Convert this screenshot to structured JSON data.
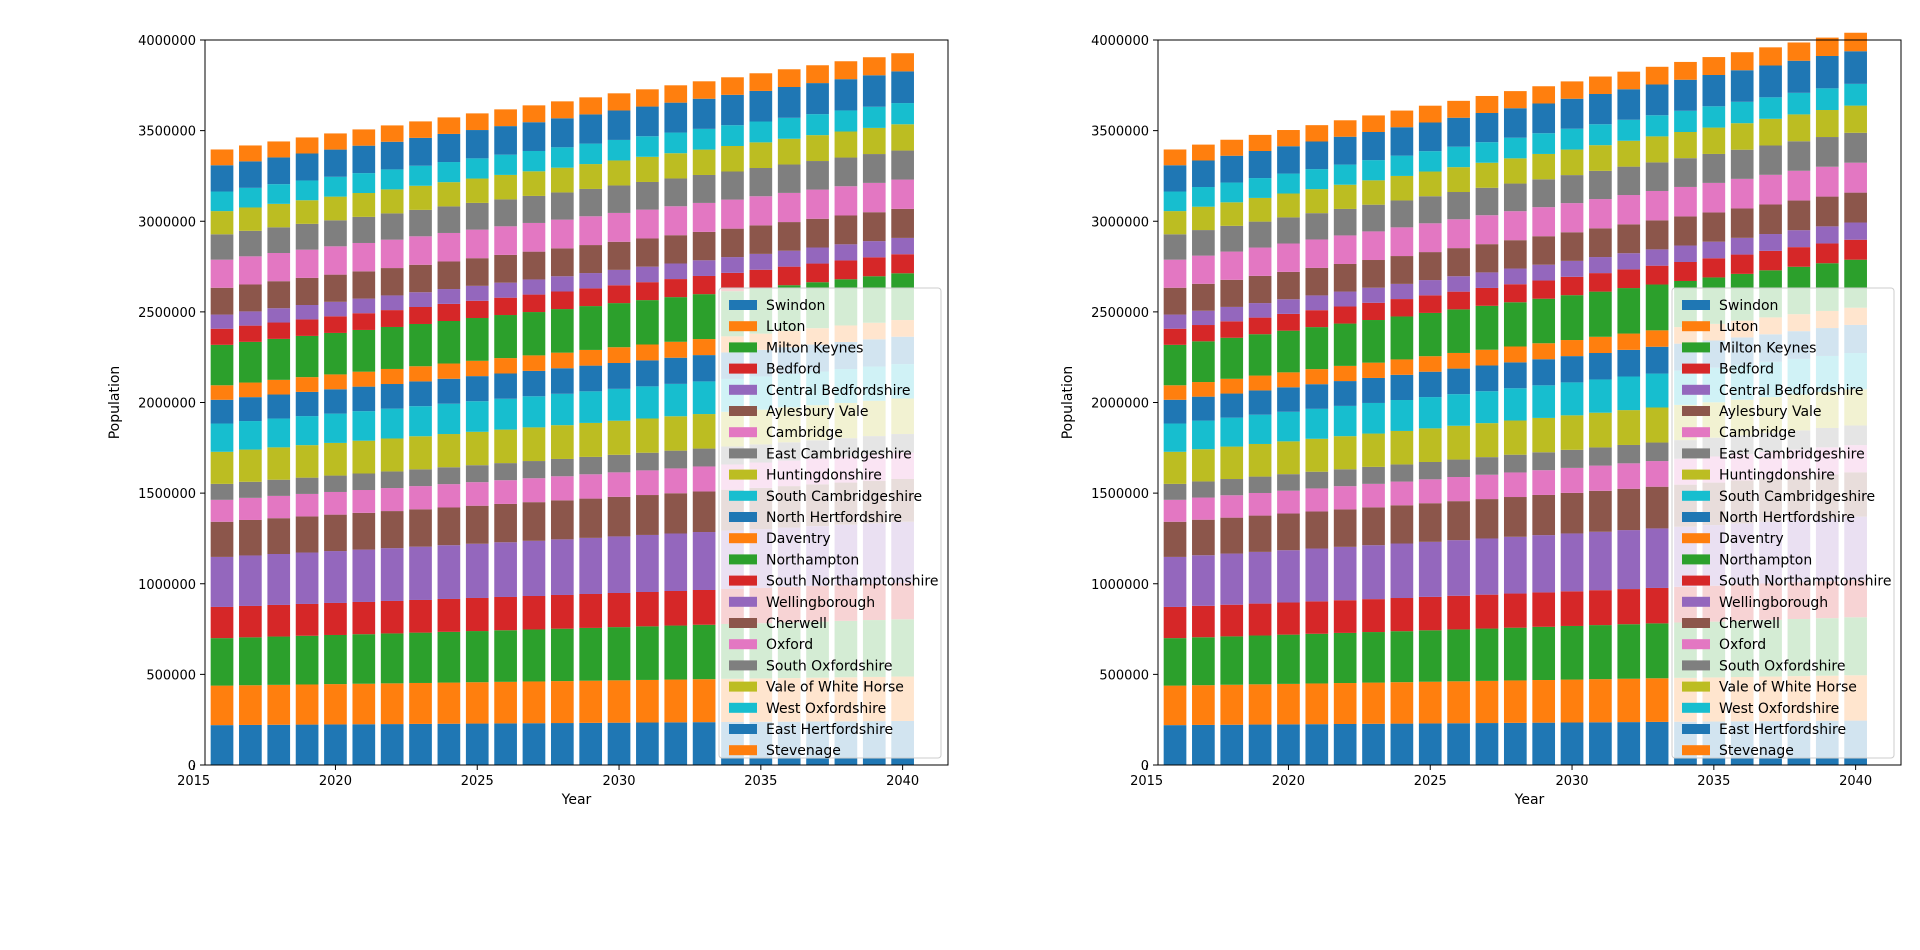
{
  "chart_data": [
    {
      "type": "bar",
      "stacked": true,
      "title": "",
      "xlabel": "Year",
      "ylabel": "Population",
      "xlim": [
        2015.4,
        2041.6
      ],
      "ylim": [
        0,
        4000000
      ],
      "xticks": [
        2015,
        2020,
        2025,
        2030,
        2035,
        2040
      ],
      "yticks": [
        0,
        500000,
        1000000,
        1500000,
        2000000,
        2500000,
        3000000,
        3500000,
        4000000
      ],
      "legend": "lower-right",
      "grid": false,
      "x": [
        2016,
        2017,
        2018,
        2019,
        2020,
        2021,
        2022,
        2023,
        2024,
        2025,
        2026,
        2027,
        2028,
        2029,
        2030,
        2031,
        2032,
        2033,
        2034,
        2035,
        2036,
        2037,
        2038,
        2039,
        2040
      ],
      "series": [
        {
          "name": "Swindon",
          "color": "#1f77b4",
          "start": 220000,
          "end": 243000
        },
        {
          "name": "Luton",
          "color": "#ff7f0e",
          "start": 218000,
          "end": 245000
        },
        {
          "name": "Milton Keynes",
          "color": "#2ca02c",
          "start": 262000,
          "end": 316000
        },
        {
          "name": "Bedford",
          "color": "#d62728",
          "start": 172000,
          "end": 200000
        },
        {
          "name": "Central Bedfordshire",
          "color": "#9467bd",
          "start": 276000,
          "end": 338000
        },
        {
          "name": "Aylesbury Vale",
          "color": "#8c564b",
          "start": 194000,
          "end": 236000
        },
        {
          "name": "Cambridge",
          "color": "#e377c2",
          "start": 121000,
          "end": 145000
        },
        {
          "name": "East Cambridgeshire",
          "color": "#7f7f7f",
          "start": 88000,
          "end": 103000
        },
        {
          "name": "Huntingdonshire",
          "color": "#bcbd22",
          "start": 177000,
          "end": 196000
        },
        {
          "name": "South Cambridgeshire",
          "color": "#17becf",
          "start": 156000,
          "end": 190000
        },
        {
          "name": "North Hertfordshire",
          "color": "#1f77b4",
          "start": 131000,
          "end": 151000
        },
        {
          "name": "Daventry",
          "color": "#ff7f0e",
          "start": 80000,
          "end": 92000
        },
        {
          "name": "Northampton",
          "color": "#2ca02c",
          "start": 223000,
          "end": 258000
        },
        {
          "name": "South Northamptonshire",
          "color": "#d62728",
          "start": 89000,
          "end": 105000
        },
        {
          "name": "Wellingborough",
          "color": "#9467bd",
          "start": 78000,
          "end": 90000
        },
        {
          "name": "Cherwell",
          "color": "#8c564b",
          "start": 148000,
          "end": 160000
        },
        {
          "name": "Oxford",
          "color": "#e377c2",
          "start": 155000,
          "end": 162000
        },
        {
          "name": "South Oxfordshire",
          "color": "#7f7f7f",
          "start": 140000,
          "end": 160000
        },
        {
          "name": "Vale of White Horse",
          "color": "#bcbd22",
          "start": 128000,
          "end": 145000
        },
        {
          "name": "West Oxfordshire",
          "color": "#17becf",
          "start": 108000,
          "end": 117000
        },
        {
          "name": "East Hertfordshire",
          "color": "#1f77b4",
          "start": 145000,
          "end": 175000
        },
        {
          "name": "Stevenage",
          "color": "#ff7f0e",
          "start": 87000,
          "end": 100000
        }
      ]
    },
    {
      "type": "bar",
      "stacked": true,
      "title": "",
      "xlabel": "Year",
      "ylabel": "Population",
      "xlim": [
        2015.4,
        2041.6
      ],
      "ylim": [
        0,
        4000000
      ],
      "xticks": [
        2015,
        2020,
        2025,
        2030,
        2035,
        2040
      ],
      "yticks": [
        0,
        500000,
        1000000,
        1500000,
        2000000,
        2500000,
        3000000,
        3500000,
        4000000
      ],
      "legend": "lower-right",
      "grid": false,
      "x": [
        2016,
        2017,
        2018,
        2019,
        2020,
        2021,
        2022,
        2023,
        2024,
        2025,
        2026,
        2027,
        2028,
        2029,
        2030,
        2031,
        2032,
        2033,
        2034,
        2035,
        2036,
        2037,
        2038,
        2039,
        2040
      ],
      "series": [
        {
          "name": "Swindon",
          "color": "#1f77b4",
          "start": 220000,
          "end": 245000
        },
        {
          "name": "Luton",
          "color": "#ff7f0e",
          "start": 218000,
          "end": 250000
        },
        {
          "name": "Milton Keynes",
          "color": "#2ca02c",
          "start": 262000,
          "end": 320000
        },
        {
          "name": "Bedford",
          "color": "#d62728",
          "start": 172000,
          "end": 205000
        },
        {
          "name": "Central Bedfordshire",
          "color": "#9467bd",
          "start": 276000,
          "end": 350000
        },
        {
          "name": "Aylesbury Vale",
          "color": "#8c564b",
          "start": 194000,
          "end": 245000
        },
        {
          "name": "Cambridge",
          "color": "#e377c2",
          "start": 121000,
          "end": 150000
        },
        {
          "name": "East Cambridgeshire",
          "color": "#7f7f7f",
          "start": 88000,
          "end": 108000
        },
        {
          "name": "Huntingdonshire",
          "color": "#bcbd22",
          "start": 177000,
          "end": 200000
        },
        {
          "name": "South Cambridgeshire",
          "color": "#17becf",
          "start": 156000,
          "end": 200000
        },
        {
          "name": "North Hertfordshire",
          "color": "#1f77b4",
          "start": 131000,
          "end": 155000
        },
        {
          "name": "Daventry",
          "color": "#ff7f0e",
          "start": 80000,
          "end": 95000
        },
        {
          "name": "Northampton",
          "color": "#2ca02c",
          "start": 223000,
          "end": 265000
        },
        {
          "name": "South Northamptonshire",
          "color": "#d62728",
          "start": 89000,
          "end": 110000
        },
        {
          "name": "Wellingborough",
          "color": "#9467bd",
          "start": 78000,
          "end": 95000
        },
        {
          "name": "Cherwell",
          "color": "#8c564b",
          "start": 148000,
          "end": 165000
        },
        {
          "name": "Oxford",
          "color": "#e377c2",
          "start": 155000,
          "end": 165000
        },
        {
          "name": "South Oxfordshire",
          "color": "#7f7f7f",
          "start": 140000,
          "end": 165000
        },
        {
          "name": "Vale of White Horse",
          "color": "#bcbd22",
          "start": 128000,
          "end": 150000
        },
        {
          "name": "West Oxfordshire",
          "color": "#17becf",
          "start": 108000,
          "end": 120000
        },
        {
          "name": "East Hertfordshire",
          "color": "#1f77b4",
          "start": 145000,
          "end": 180000
        },
        {
          "name": "Stevenage",
          "color": "#ff7f0e",
          "start": 87000,
          "end": 102000
        }
      ]
    }
  ]
}
